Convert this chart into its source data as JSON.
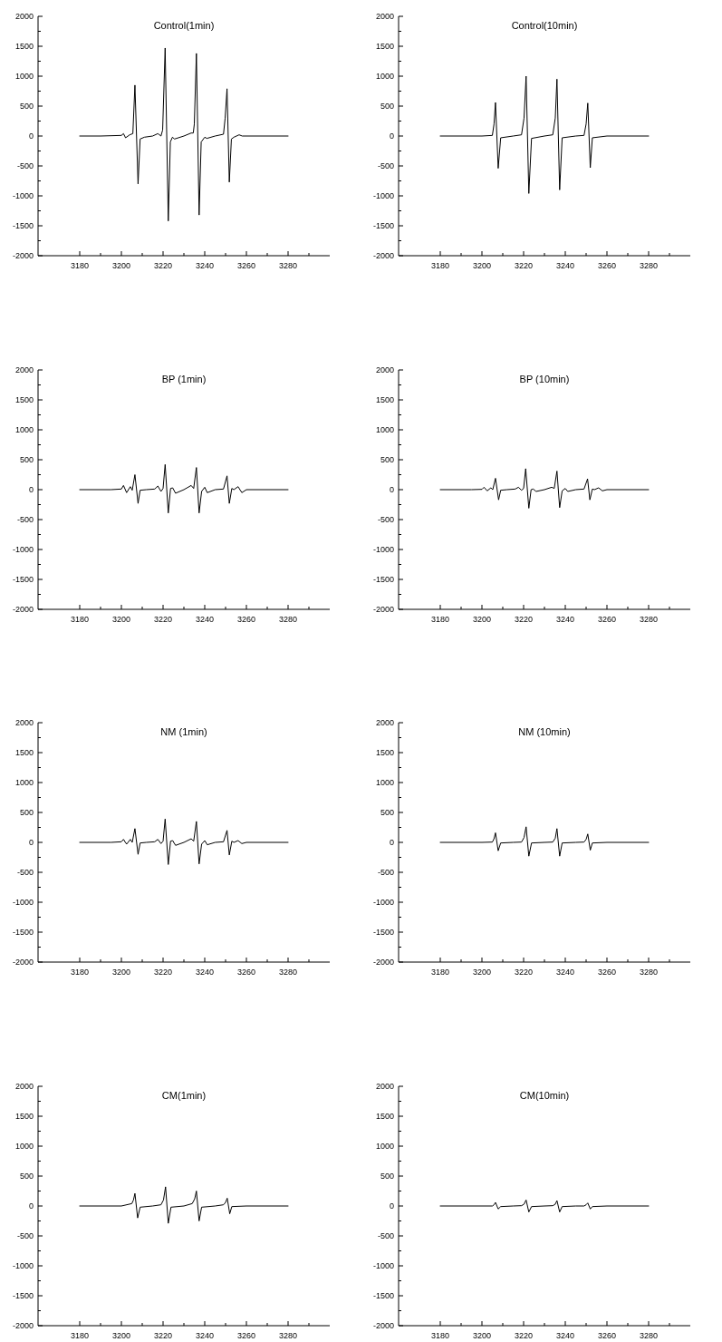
{
  "chart_data": [
    {
      "type": "line",
      "title": "Control(1min)",
      "color": "#000000",
      "xlim": [
        3160,
        3300
      ],
      "ylim": [
        -2000,
        2000
      ],
      "xticks": [
        3180,
        {
          "value": 3190,
          "label": null
        },
        3200,
        {
          "value": 3210,
          "label": null
        },
        3220,
        {
          "value": 3230,
          "label": null
        },
        3240,
        {
          "value": 3250,
          "label": null
        },
        3260,
        {
          "value": 3270,
          "label": null
        },
        3280,
        {
          "value": 3290,
          "label": null
        }
      ],
      "yticks": [
        -2000,
        {
          "value": -1750,
          "label": null
        },
        -1500,
        {
          "value": -1250,
          "label": null
        },
        -1000,
        {
          "value": -750,
          "label": null
        },
        -500,
        {
          "value": -250,
          "label": null
        },
        0,
        {
          "value": 250,
          "label": null
        },
        500,
        {
          "value": 750,
          "label": null
        },
        1000,
        {
          "value": 1250,
          "label": null
        },
        1500,
        {
          "value": 1750,
          "label": null
        },
        2000
      ],
      "x": [
        3180,
        3190,
        3200,
        3201,
        3202,
        3204,
        3205.5,
        3206.5,
        3208,
        3209,
        3211,
        3215,
        3217.5,
        3219,
        3219.8,
        3221,
        3222.5,
        3223.5,
        3224.5,
        3225.5,
        3230,
        3233.5,
        3234.5,
        3235,
        3236,
        3237.3,
        3238.3,
        3240,
        3241,
        3245,
        3249,
        3249.8,
        3250.7,
        3251.8,
        3252.8,
        3254,
        3256.5,
        3258,
        3270,
        3280
      ],
      "values": [
        0,
        0,
        10,
        40,
        -30,
        20,
        40,
        850,
        -800,
        -50,
        -20,
        0,
        40,
        0,
        100,
        1470,
        -1420,
        -100,
        -20,
        -50,
        0,
        50,
        50,
        200,
        1380,
        -1320,
        -100,
        -20,
        -40,
        0,
        30,
        300,
        790,
        -770,
        -50,
        -20,
        20,
        0,
        0,
        0
      ]
    },
    {
      "type": "line",
      "title": "Control(10min)",
      "color": "#000000",
      "xlim": [
        3160,
        3300
      ],
      "ylim": [
        -2000,
        2000
      ],
      "xticks": [
        3180,
        {
          "value": 3190,
          "label": null
        },
        3200,
        {
          "value": 3210,
          "label": null
        },
        3220,
        {
          "value": 3230,
          "label": null
        },
        3240,
        {
          "value": 3250,
          "label": null
        },
        3260,
        {
          "value": 3270,
          "label": null
        },
        3280,
        {
          "value": 3290,
          "label": null
        }
      ],
      "yticks": [
        -2000,
        {
          "value": -1750,
          "label": null
        },
        -1500,
        {
          "value": -1250,
          "label": null
        },
        -1000,
        {
          "value": -750,
          "label": null
        },
        -500,
        {
          "value": -250,
          "label": null
        },
        0,
        {
          "value": 250,
          "label": null
        },
        500,
        {
          "value": 750,
          "label": null
        },
        1000,
        {
          "value": 1250,
          "label": null
        },
        1500,
        {
          "value": 1750,
          "label": null
        },
        2000
      ],
      "x": [
        3180,
        3200,
        3205,
        3205.8,
        3206.5,
        3207.8,
        3209,
        3215,
        3219,
        3220.2,
        3221.2,
        3222.5,
        3223.8,
        3230,
        3234,
        3235.2,
        3236,
        3237.3,
        3238.5,
        3245,
        3249,
        3250,
        3250.8,
        3252,
        3253,
        3260,
        3280
      ],
      "values": [
        0,
        0,
        10,
        200,
        560,
        -540,
        -30,
        0,
        20,
        300,
        1000,
        -960,
        -40,
        0,
        20,
        300,
        950,
        -900,
        -30,
        0,
        10,
        200,
        550,
        -530,
        -30,
        0,
        0
      ]
    },
    {
      "type": "line",
      "title": "BP (1min)",
      "color": "#000000",
      "xlim": [
        3160,
        3300
      ],
      "ylim": [
        -2000,
        2000
      ],
      "xticks": [
        3180,
        {
          "value": 3190,
          "label": null
        },
        3200,
        {
          "value": 3210,
          "label": null
        },
        3220,
        {
          "value": 3230,
          "label": null
        },
        3240,
        {
          "value": 3250,
          "label": null
        },
        3260,
        {
          "value": 3270,
          "label": null
        },
        3280,
        {
          "value": 3290,
          "label": null
        }
      ],
      "yticks": [
        -2000,
        {
          "value": -1750,
          "label": null
        },
        -1500,
        {
          "value": -1250,
          "label": null
        },
        -1000,
        {
          "value": -750,
          "label": null
        },
        -500,
        {
          "value": -250,
          "label": null
        },
        0,
        {
          "value": 250,
          "label": null
        },
        500,
        {
          "value": 750,
          "label": null
        },
        1000,
        {
          "value": 1250,
          "label": null
        },
        1500,
        {
          "value": 1750,
          "label": null
        },
        2000
      ],
      "x": [
        3180,
        3195,
        3200,
        3201,
        3202.5,
        3204.3,
        3205.2,
        3206.5,
        3208,
        3209,
        3212,
        3216,
        3217.5,
        3219,
        3220,
        3221,
        3222.5,
        3223.6,
        3224.6,
        3226,
        3230,
        3233.5,
        3234.7,
        3236,
        3237.3,
        3238.5,
        3240,
        3241.2,
        3245,
        3249,
        3250.7,
        3251.8,
        3253,
        3254,
        3256,
        3257.8,
        3260,
        3280
      ],
      "values": [
        0,
        0,
        10,
        70,
        -50,
        50,
        -10,
        250,
        -230,
        -10,
        0,
        10,
        60,
        -30,
        20,
        420,
        -390,
        20,
        30,
        -60,
        0,
        70,
        20,
        370,
        -390,
        -30,
        40,
        -50,
        0,
        10,
        230,
        -230,
        20,
        0,
        50,
        -50,
        0,
        0
      ]
    },
    {
      "type": "line",
      "title": "BP  (10min)",
      "color": "#000000",
      "xlim": [
        3160,
        3300
      ],
      "ylim": [
        -2000,
        2000
      ],
      "xticks": [
        3180,
        {
          "value": 3190,
          "label": null
        },
        3200,
        {
          "value": 3210,
          "label": null
        },
        3220,
        {
          "value": 3230,
          "label": null
        },
        3240,
        {
          "value": 3250,
          "label": null
        },
        3260,
        {
          "value": 3270,
          "label": null
        },
        3280,
        {
          "value": 3290,
          "label": null
        }
      ],
      "yticks": [
        -2000,
        {
          "value": -1750,
          "label": null
        },
        -1500,
        {
          "value": -1250,
          "label": null
        },
        -1000,
        {
          "value": -750,
          "label": null
        },
        -500,
        {
          "value": -250,
          "label": null
        },
        0,
        {
          "value": 250,
          "label": null
        },
        500,
        {
          "value": 750,
          "label": null
        },
        1000,
        {
          "value": 1250,
          "label": null
        },
        1500,
        {
          "value": 1750,
          "label": null
        },
        2000
      ],
      "x": [
        3180,
        3195,
        3200,
        3201,
        3202.5,
        3204.3,
        3205.2,
        3206.5,
        3208,
        3209,
        3212,
        3216,
        3217.5,
        3219,
        3220,
        3221,
        3222.5,
        3223.6,
        3224.6,
        3226,
        3230,
        3233.5,
        3234.7,
        3236,
        3237.3,
        3238.5,
        3240,
        3241.2,
        3245,
        3249,
        3250.7,
        3251.8,
        3253,
        3254,
        3256,
        3257.8,
        3260,
        3280
      ],
      "values": [
        0,
        0,
        5,
        40,
        -20,
        30,
        0,
        190,
        -170,
        -10,
        0,
        10,
        40,
        -10,
        20,
        350,
        -310,
        0,
        10,
        -30,
        0,
        40,
        20,
        310,
        -300,
        -20,
        20,
        -30,
        0,
        10,
        180,
        -170,
        10,
        0,
        30,
        -20,
        0,
        0
      ]
    },
    {
      "type": "line",
      "title": "NM (1min)",
      "color": "#000000",
      "xlim": [
        3160,
        3300
      ],
      "ylim": [
        -2000,
        2000
      ],
      "xticks": [
        3180,
        {
          "value": 3190,
          "label": null
        },
        3200,
        {
          "value": 3210,
          "label": null
        },
        3220,
        {
          "value": 3230,
          "label": null
        },
        3240,
        {
          "value": 3250,
          "label": null
        },
        3260,
        {
          "value": 3270,
          "label": null
        },
        3280,
        {
          "value": 3290,
          "label": null
        }
      ],
      "yticks": [
        -2000,
        {
          "value": -1750,
          "label": null
        },
        -1500,
        {
          "value": -1250,
          "label": null
        },
        -1000,
        {
          "value": -750,
          "label": null
        },
        -500,
        {
          "value": -250,
          "label": null
        },
        0,
        {
          "value": 250,
          "label": null
        },
        500,
        {
          "value": 750,
          "label": null
        },
        1000,
        {
          "value": 1250,
          "label": null
        },
        1500,
        {
          "value": 1750,
          "label": null
        },
        2000
      ],
      "x": [
        3180,
        3195,
        3200,
        3201,
        3202.5,
        3204.3,
        3205.2,
        3206.5,
        3208,
        3209,
        3212,
        3216,
        3217.5,
        3219,
        3220,
        3221,
        3222.5,
        3223.6,
        3224.6,
        3226,
        3230,
        3233.5,
        3234.7,
        3236,
        3237.3,
        3238.5,
        3240,
        3241.2,
        3245,
        3249,
        3250.7,
        3251.8,
        3253,
        3254,
        3256,
        3257.8,
        3260,
        3280
      ],
      "values": [
        0,
        0,
        10,
        50,
        -30,
        50,
        0,
        230,
        -200,
        -10,
        0,
        10,
        50,
        -20,
        20,
        390,
        -370,
        20,
        30,
        -50,
        0,
        60,
        20,
        350,
        -360,
        -30,
        30,
        -40,
        0,
        10,
        200,
        -210,
        20,
        0,
        30,
        -20,
        0,
        0
      ]
    },
    {
      "type": "line",
      "title": "NM (10min)",
      "color": "#000000",
      "xlim": [
        3160,
        3300
      ],
      "ylim": [
        -2000,
        2000
      ],
      "xticks": [
        3180,
        {
          "value": 3190,
          "label": null
        },
        3200,
        {
          "value": 3210,
          "label": null
        },
        3220,
        {
          "value": 3230,
          "label": null
        },
        3240,
        {
          "value": 3250,
          "label": null
        },
        3260,
        {
          "value": 3270,
          "label": null
        },
        3280,
        {
          "value": 3290,
          "label": null
        }
      ],
      "yticks": [
        -2000,
        {
          "value": -1750,
          "label": null
        },
        -1500,
        {
          "value": -1250,
          "label": null
        },
        -1000,
        {
          "value": -750,
          "label": null
        },
        -500,
        {
          "value": -250,
          "label": null
        },
        0,
        {
          "value": 250,
          "label": null
        },
        500,
        {
          "value": 750,
          "label": null
        },
        1000,
        {
          "value": 1250,
          "label": null
        },
        1500,
        {
          "value": 1750,
          "label": null
        },
        2000
      ],
      "x": [
        3180,
        3200,
        3205,
        3205.8,
        3206.5,
        3207.8,
        3209,
        3215,
        3219,
        3220.2,
        3221.2,
        3222.5,
        3223.8,
        3230,
        3234,
        3235.2,
        3236,
        3237.3,
        3238.5,
        3245,
        3249,
        3250,
        3250.8,
        3252,
        3253,
        3260,
        3280
      ],
      "values": [
        0,
        0,
        5,
        60,
        160,
        -140,
        -10,
        0,
        5,
        80,
        260,
        -230,
        -10,
        0,
        5,
        70,
        230,
        -230,
        -10,
        0,
        5,
        50,
        140,
        -130,
        -10,
        0,
        0
      ]
    },
    {
      "type": "line",
      "title": "CM(1min)",
      "color": "#000000",
      "xlim": [
        3160,
        3300
      ],
      "ylim": [
        -2000,
        2000
      ],
      "xticks": [
        3180,
        {
          "value": 3190,
          "label": null
        },
        3200,
        {
          "value": 3210,
          "label": null
        },
        3220,
        {
          "value": 3230,
          "label": null
        },
        3240,
        {
          "value": 3250,
          "label": null
        },
        3260,
        {
          "value": 3270,
          "label": null
        },
        3280,
        {
          "value": 3290,
          "label": null
        }
      ],
      "yticks": [
        -2000,
        {
          "value": -1750,
          "label": null
        },
        -1500,
        {
          "value": -1250,
          "label": null
        },
        -1000,
        {
          "value": -750,
          "label": null
        },
        -500,
        {
          "value": -250,
          "label": null
        },
        0,
        {
          "value": 250,
          "label": null
        },
        500,
        {
          "value": 750,
          "label": null
        },
        1000,
        {
          "value": 1250,
          "label": null
        },
        1500,
        {
          "value": 1750,
          "label": null
        },
        2000
      ],
      "x": [
        3180,
        3200,
        3205,
        3205.8,
        3206.5,
        3207.8,
        3209,
        3215,
        3219,
        3220.2,
        3221.2,
        3222.5,
        3223.8,
        3230,
        3234,
        3235.2,
        3236,
        3237.3,
        3238.5,
        3245,
        3249,
        3250,
        3250.8,
        3252,
        3253,
        3260,
        3280
      ],
      "values": [
        0,
        0,
        40,
        100,
        210,
        -200,
        -20,
        0,
        20,
        100,
        320,
        -290,
        -20,
        0,
        40,
        120,
        250,
        -250,
        -20,
        0,
        20,
        60,
        130,
        -130,
        -10,
        0,
        0
      ]
    },
    {
      "type": "line",
      "title": "CM(10min)",
      "color": "#000000",
      "xlim": [
        3160,
        3300
      ],
      "ylim": [
        -2000,
        2000
      ],
      "xticks": [
        3180,
        {
          "value": 3190,
          "label": null
        },
        3200,
        {
          "value": 3210,
          "label": null
        },
        3220,
        {
          "value": 3230,
          "label": null
        },
        3240,
        {
          "value": 3250,
          "label": null
        },
        3260,
        {
          "value": 3270,
          "label": null
        },
        3280,
        {
          "value": 3290,
          "label": null
        }
      ],
      "yticks": [
        -2000,
        {
          "value": -1750,
          "label": null
        },
        -1500,
        {
          "value": -1250,
          "label": null
        },
        -1000,
        {
          "value": -750,
          "label": null
        },
        -500,
        {
          "value": -250,
          "label": null
        },
        0,
        {
          "value": 250,
          "label": null
        },
        500,
        {
          "value": 750,
          "label": null
        },
        1000,
        {
          "value": 1250,
          "label": null
        },
        1500,
        {
          "value": 1750,
          "label": null
        },
        2000
      ],
      "x": [
        3180,
        3200,
        3205,
        3205.8,
        3206.5,
        3207.8,
        3209,
        3215,
        3219,
        3220.2,
        3221.2,
        3222.5,
        3223.8,
        3230,
        3234,
        3235.2,
        3236,
        3237.3,
        3238.5,
        3245,
        3249,
        3250,
        3250.8,
        3252,
        3253,
        3260,
        3280
      ],
      "values": [
        0,
        0,
        0,
        20,
        60,
        -50,
        -10,
        0,
        5,
        30,
        100,
        -100,
        -10,
        0,
        5,
        30,
        90,
        -100,
        -10,
        0,
        0,
        20,
        50,
        -50,
        -10,
        0,
        0
      ]
    }
  ]
}
